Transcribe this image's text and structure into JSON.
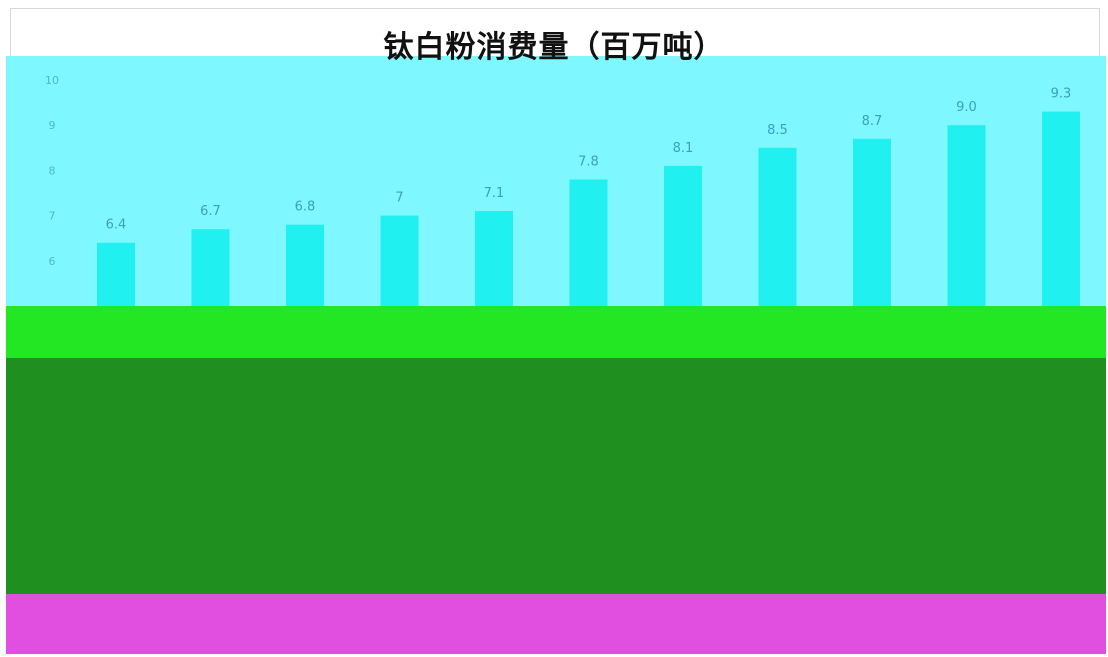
{
  "chart_data": {
    "type": "bar",
    "title": "钛白粉消费量（百万吨）",
    "categories": [
      "",
      "",
      "",
      "",
      "",
      "",
      "",
      "",
      "",
      "",
      ""
    ],
    "values": [
      6.4,
      6.7,
      6.8,
      7,
      7.1,
      7.8,
      8.1,
      8.5,
      8.7,
      9.0,
      9.3
    ],
    "value_labels": [
      "6.4",
      "6.7",
      "6.8",
      "7",
      "7.1",
      "7.8",
      "8.1",
      "8.5",
      "8.7",
      "9.0",
      "9.3"
    ],
    "yticks": [
      "10",
      "9",
      "8",
      "7",
      "6"
    ],
    "ylim": [
      5,
      10
    ],
    "colors": {
      "bar": "#21f0f0",
      "plot_bg": "#7ff7ff"
    }
  }
}
